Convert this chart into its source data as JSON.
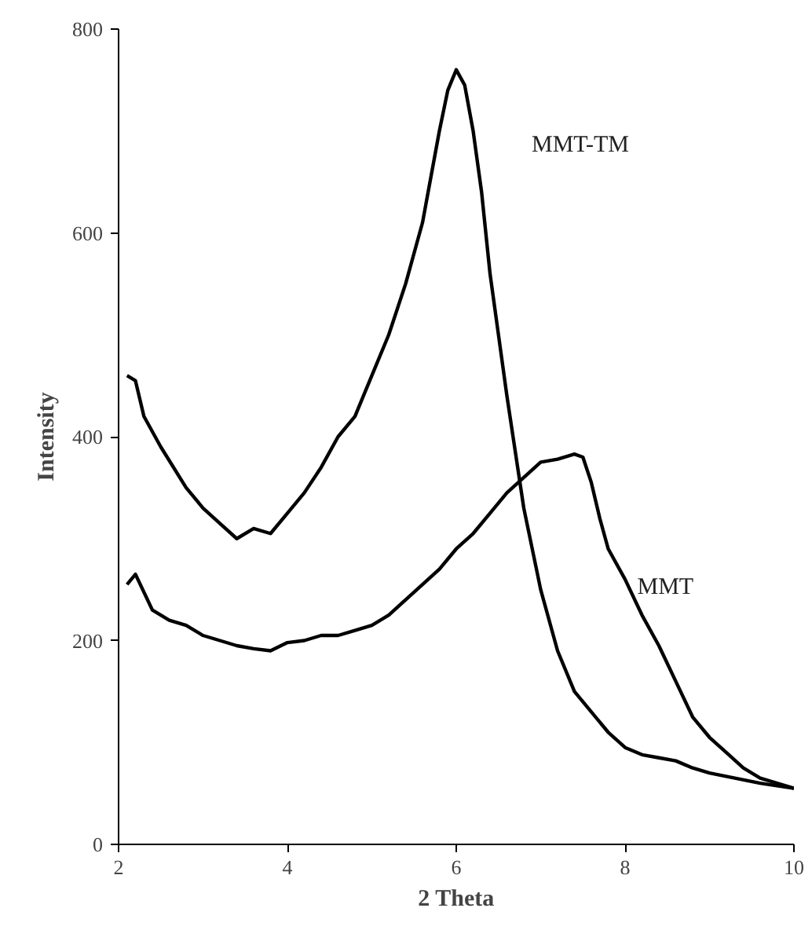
{
  "chart_data": {
    "type": "line",
    "xlabel": "2 Theta",
    "ylabel": "Intensity",
    "xlim": [
      2,
      10
    ],
    "ylim": [
      0,
      800
    ],
    "xticks": [
      2,
      4,
      6,
      8,
      10
    ],
    "yticks": [
      0,
      200,
      400,
      600,
      800
    ],
    "grid": false,
    "marker": "none",
    "line_style": "solid",
    "series": [
      {
        "name": "MMT-TM",
        "color": "#000000",
        "x": [
          2.1,
          2.2,
          2.3,
          2.5,
          2.8,
          3.0,
          3.2,
          3.4,
          3.6,
          3.8,
          4.0,
          4.2,
          4.4,
          4.6,
          4.8,
          5.0,
          5.2,
          5.4,
          5.6,
          5.8,
          5.9,
          6.0,
          6.1,
          6.2,
          6.3,
          6.4,
          6.5,
          6.6,
          6.8,
          7.0,
          7.2,
          7.4,
          7.6,
          7.8,
          8.0,
          8.2,
          8.4,
          8.6,
          8.8,
          9.0,
          9.3,
          9.6,
          10.0
        ],
        "values": [
          460,
          455,
          420,
          390,
          350,
          330,
          315,
          300,
          310,
          305,
          325,
          345,
          370,
          400,
          420,
          460,
          500,
          550,
          610,
          700,
          740,
          760,
          745,
          700,
          640,
          560,
          500,
          440,
          330,
          250,
          190,
          150,
          130,
          110,
          95,
          88,
          85,
          82,
          75,
          70,
          65,
          60,
          55
        ]
      },
      {
        "name": "MMT",
        "color": "#000000",
        "x": [
          2.1,
          2.2,
          2.4,
          2.6,
          2.8,
          3.0,
          3.2,
          3.4,
          3.6,
          3.8,
          4.0,
          4.2,
          4.4,
          4.6,
          4.8,
          5.0,
          5.2,
          5.4,
          5.6,
          5.8,
          6.0,
          6.2,
          6.4,
          6.6,
          6.8,
          7.0,
          7.2,
          7.4,
          7.5,
          7.6,
          7.7,
          7.8,
          8.0,
          8.2,
          8.4,
          8.6,
          8.8,
          9.0,
          9.2,
          9.4,
          9.6,
          9.8,
          10.0
        ],
        "values": [
          255,
          265,
          230,
          220,
          215,
          205,
          200,
          195,
          192,
          190,
          198,
          200,
          205,
          205,
          210,
          215,
          225,
          240,
          255,
          270,
          290,
          305,
          325,
          345,
          360,
          375,
          378,
          383,
          380,
          355,
          320,
          290,
          260,
          225,
          195,
          160,
          125,
          105,
          90,
          75,
          65,
          60,
          55
        ]
      }
    ]
  }
}
